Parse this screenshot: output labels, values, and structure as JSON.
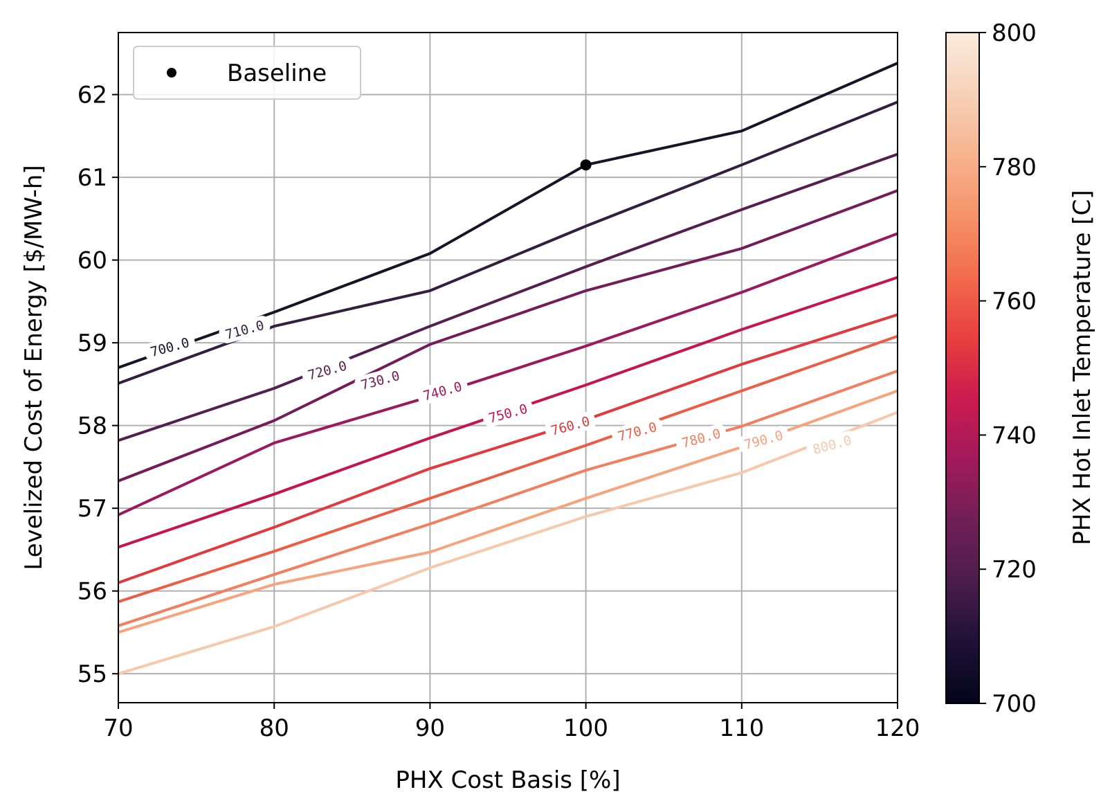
{
  "chart_data": {
    "type": "line",
    "xlabel": "PHX Cost Basis [%]",
    "ylabel": "Levelized Cost of Energy [$/MW-h]",
    "xlim": [
      70,
      120
    ],
    "ylim": [
      54.65,
      62.75
    ],
    "xticks": [
      70,
      80,
      90,
      100,
      110,
      120
    ],
    "yticks": [
      55,
      56,
      57,
      58,
      59,
      60,
      61,
      62
    ],
    "grid": true,
    "legend": {
      "placement": "top-left",
      "entries": [
        "Baseline"
      ]
    },
    "x": [
      70,
      80,
      90,
      100,
      110,
      120
    ],
    "series": [
      {
        "name": "700.0",
        "values": [
          58.7,
          59.37,
          60.08,
          61.15,
          61.56,
          62.38
        ],
        "color": "#1b1228"
      },
      {
        "name": "710.0",
        "values": [
          58.51,
          59.2,
          59.63,
          60.41,
          61.15,
          61.91
        ],
        "color": "#341e3f"
      },
      {
        "name": "720.0",
        "values": [
          57.82,
          58.45,
          59.2,
          59.92,
          60.61,
          61.28
        ],
        "color": "#541f4f"
      },
      {
        "name": "730.0",
        "values": [
          57.33,
          58.06,
          58.98,
          59.63,
          60.14,
          60.84
        ],
        "color": "#731c5a"
      },
      {
        "name": "740.0",
        "values": [
          56.92,
          57.79,
          58.35,
          58.96,
          59.61,
          60.32
        ],
        "color": "#9a1a5d"
      },
      {
        "name": "750.0",
        "values": [
          56.53,
          57.17,
          57.85,
          58.49,
          59.16,
          59.79
        ],
        "color": "#c5154f"
      },
      {
        "name": "760.0",
        "values": [
          56.1,
          56.77,
          57.48,
          58.07,
          58.74,
          59.34
        ],
        "color": "#e0393f"
      },
      {
        "name": "770.0",
        "values": [
          55.87,
          56.48,
          57.12,
          57.76,
          58.42,
          59.08
        ],
        "color": "#ec5d46"
      },
      {
        "name": "780.0",
        "values": [
          55.58,
          56.2,
          56.81,
          57.46,
          57.99,
          58.66
        ],
        "color": "#f27f5f"
      },
      {
        "name": "790.0",
        "values": [
          55.5,
          56.08,
          56.47,
          57.12,
          57.74,
          58.42
        ],
        "color": "#f5a47e"
      },
      {
        "name": "800.0",
        "values": [
          55.0,
          55.57,
          56.28,
          56.9,
          57.43,
          58.16
        ],
        "color": "#f6c9ad"
      }
    ],
    "baseline_point": {
      "x": 100,
      "y": 61.15,
      "color": "#000000"
    },
    "contour_labels": [
      {
        "text": "700.0",
        "x": 73.3,
        "y": 58.95,
        "color": "#1b1228"
      },
      {
        "text": "710.0",
        "x": 78.1,
        "y": 59.16,
        "color": "#341e3f"
      },
      {
        "text": "720.0",
        "x": 83.4,
        "y": 58.67,
        "color": "#541f4f"
      },
      {
        "text": "730.0",
        "x": 86.8,
        "y": 58.55,
        "color": "#731c5a"
      },
      {
        "text": "740.0",
        "x": 90.8,
        "y": 58.42,
        "color": "#9a1a5d"
      },
      {
        "text": "750.0",
        "x": 95.0,
        "y": 58.15,
        "color": "#c5154f"
      },
      {
        "text": "760.0",
        "x": 99.0,
        "y": 58.0,
        "color": "#e0393f"
      },
      {
        "text": "770.0",
        "x": 103.3,
        "y": 57.93,
        "color": "#ec5d46"
      },
      {
        "text": "780.0",
        "x": 107.4,
        "y": 57.85,
        "color": "#f27f5f"
      },
      {
        "text": "790.0",
        "x": 111.4,
        "y": 57.83,
        "color": "#f5a47e"
      },
      {
        "text": "800.0",
        "x": 115.8,
        "y": 57.77,
        "color": "#f6c9ad"
      }
    ],
    "colorbar": {
      "label": "PHX Hot Inlet Temperature [C]",
      "range": [
        700,
        800
      ],
      "ticks": [
        700,
        720,
        740,
        760,
        780,
        800
      ],
      "colormap": [
        "#03051a",
        "#1e1136",
        "#4c1d4b",
        "#711f57",
        "#a11a5b",
        "#cb1b4f",
        "#e83f3f",
        "#f26c4c",
        "#f5936a",
        "#f6b48e",
        "#f7d1b9",
        "#faebdd"
      ]
    }
  }
}
